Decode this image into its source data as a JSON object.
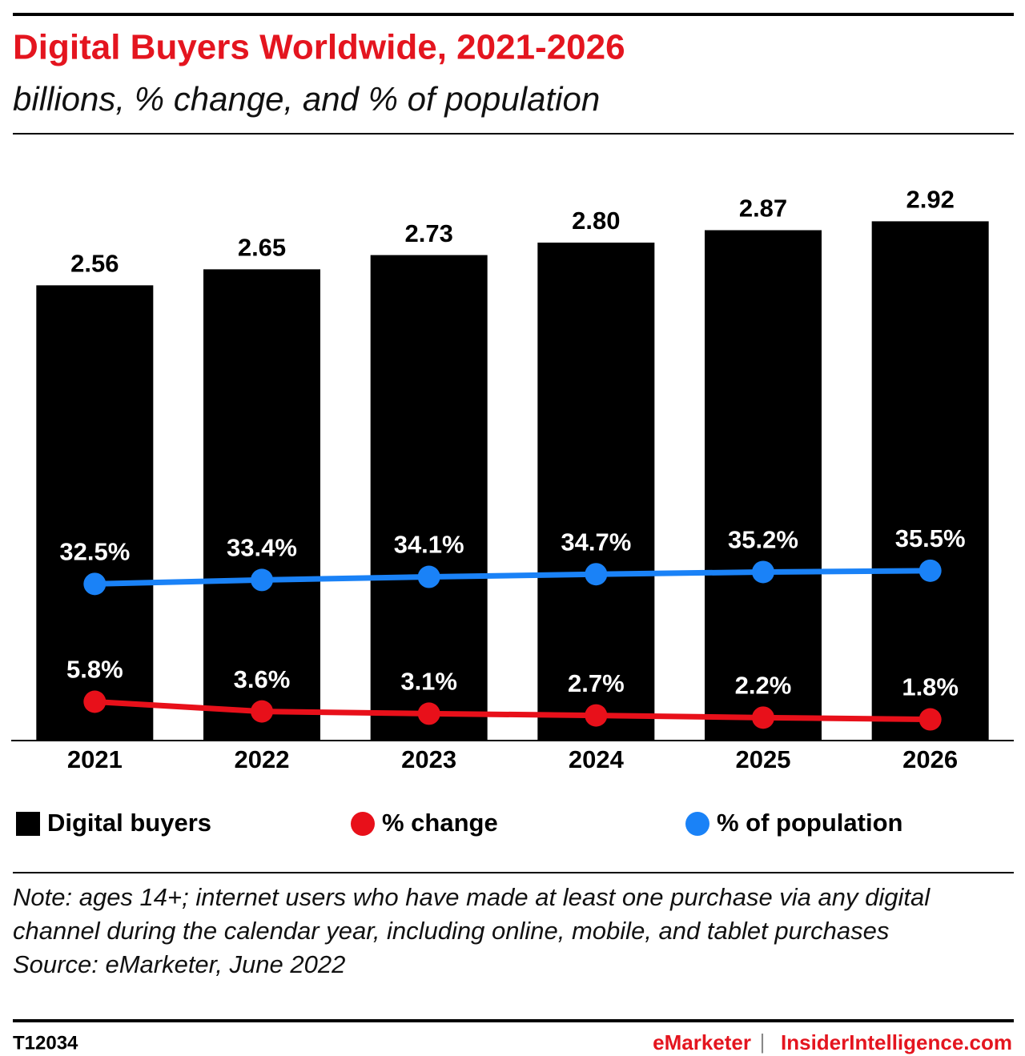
{
  "chart_data": {
    "type": "bar_line",
    "title": "Digital Buyers Worldwide, 2021-2026",
    "subtitle": "billions, % change, and % of population",
    "categories": [
      "2021",
      "2022",
      "2023",
      "2024",
      "2025",
      "2026"
    ],
    "ylim": [
      0,
      3.3
    ],
    "y2lim": [
      -3,
      130
    ],
    "series": [
      {
        "name": "Digital buyers",
        "type": "bar",
        "color": "#000000",
        "values": [
          2.56,
          2.65,
          2.73,
          2.8,
          2.87,
          2.92
        ],
        "value_labels": [
          "2.56",
          "2.65",
          "2.73",
          "2.80",
          "2.87",
          "2.92"
        ]
      },
      {
        "name": "% change",
        "type": "line",
        "axis": "y2",
        "color": "#e8101a",
        "values": [
          5.8,
          3.6,
          3.1,
          2.7,
          2.2,
          1.8
        ],
        "value_labels": [
          "5.8%",
          "3.6%",
          "3.1%",
          "2.7%",
          "2.2%",
          "1.8%"
        ]
      },
      {
        "name": "% of population",
        "type": "line",
        "axis": "y2",
        "color": "#1a82f7",
        "values": [
          32.5,
          33.4,
          34.1,
          34.7,
          35.2,
          35.5
        ],
        "value_labels": [
          "32.5%",
          "33.4%",
          "34.1%",
          "34.7%",
          "35.2%",
          "35.5%"
        ]
      }
    ],
    "note": "Note: ages 14+; internet users who have made at least one purchase via any digital channel during the calendar year, including online, mobile, and tablet purchases",
    "source": "Source: eMarketer, June 2022",
    "footer": {
      "id": "T12034",
      "brand": "eMarketer",
      "separator": "|",
      "site": "InsiderIntelligence.com"
    }
  }
}
